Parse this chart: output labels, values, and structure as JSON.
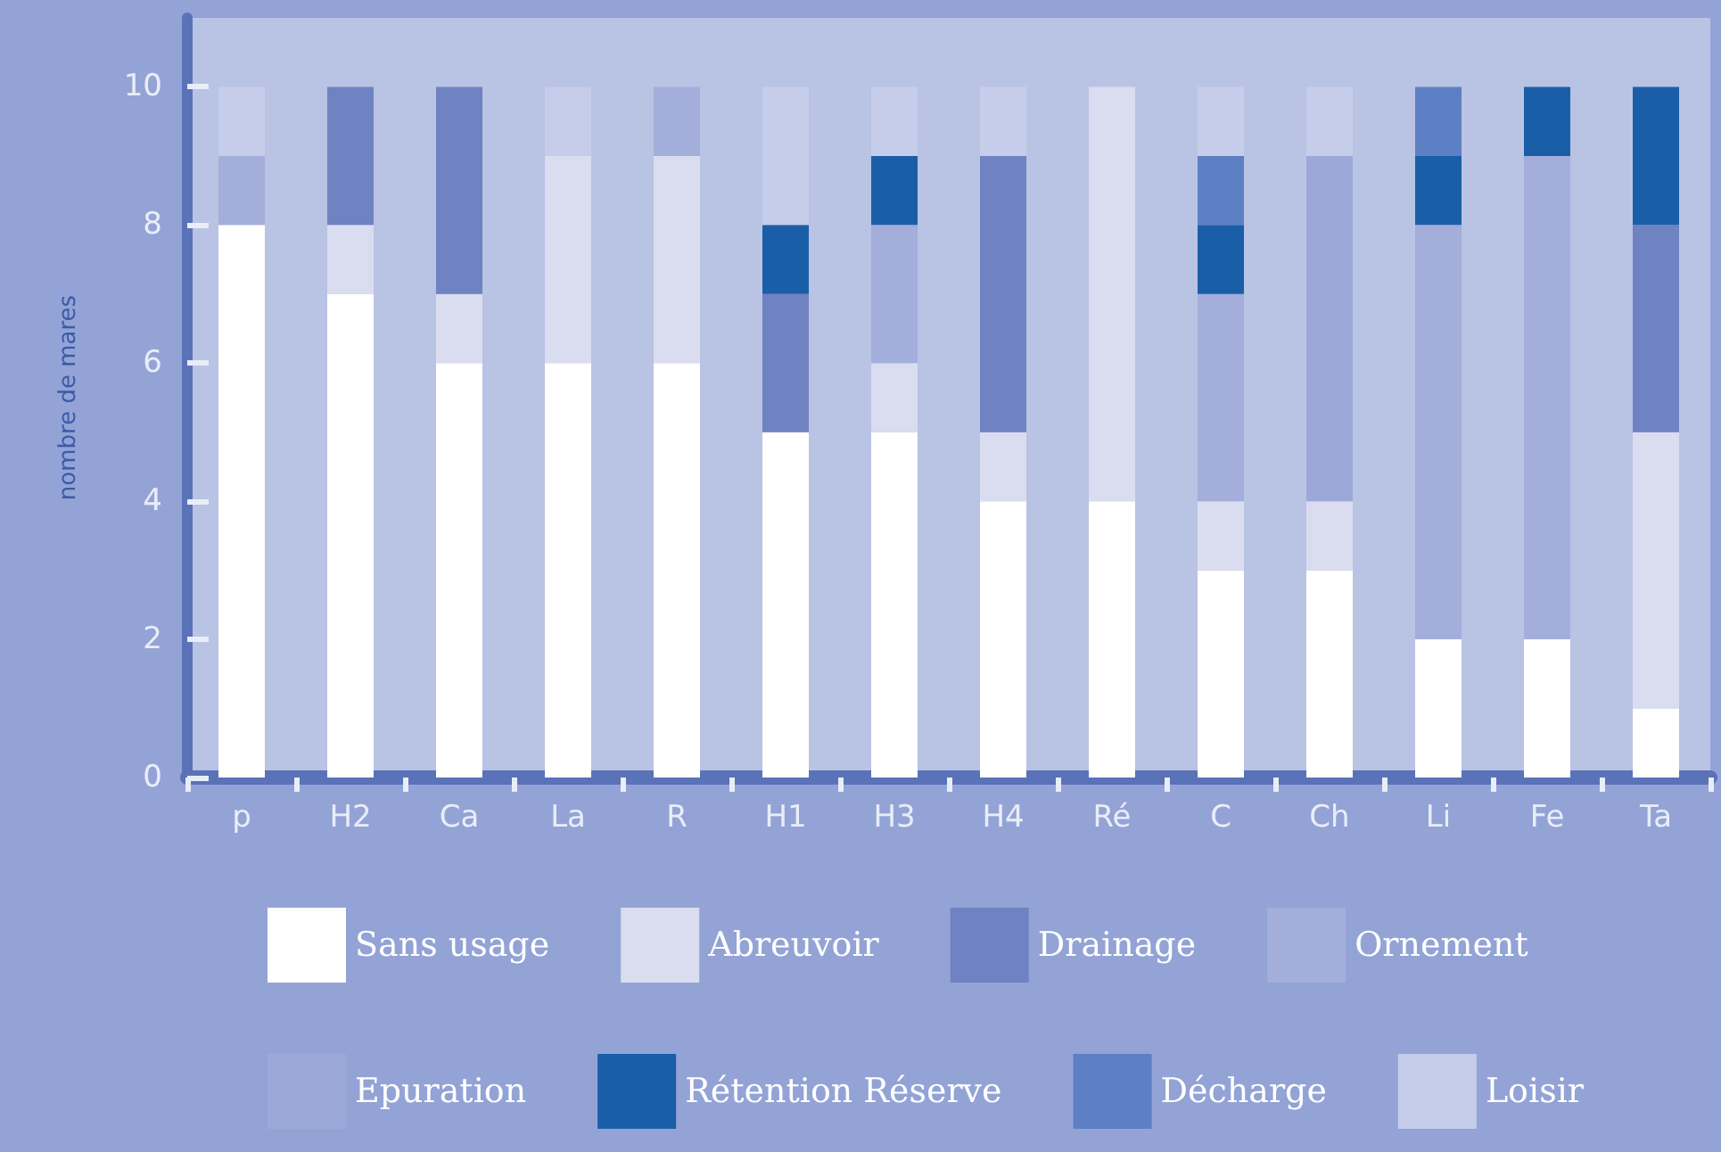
{
  "chart_data": {
    "type": "bar",
    "stacked": true,
    "ylabel": "nombre de mares",
    "categories": [
      "p",
      "H2",
      "Ca",
      "La",
      "R",
      "H1",
      "H3",
      "H4",
      "Ré",
      "C",
      "Ch",
      "Li",
      "Fe",
      "Ta"
    ],
    "series": [
      {
        "name": "Sans usage",
        "color": "#ffffff",
        "values": [
          8,
          7,
          6,
          6,
          6,
          5,
          5,
          4,
          4,
          3,
          3,
          2,
          2,
          1
        ]
      },
      {
        "name": "Abreuvoir",
        "color": "#d9ddef",
        "values": [
          0,
          1,
          1,
          3,
          3,
          0,
          1,
          1,
          6,
          1,
          1,
          0,
          0,
          4
        ]
      },
      {
        "name": "Drainage",
        "color": "#6f82c2",
        "values": [
          0,
          2,
          3,
          0,
          0,
          2,
          0,
          4,
          0,
          0,
          0,
          0,
          0,
          3
        ]
      },
      {
        "name": "Ornement",
        "color": "#a3aedb",
        "values": [
          1,
          0,
          0,
          0,
          1,
          0,
          2,
          0,
          0,
          3,
          0,
          6,
          7,
          0
        ]
      },
      {
        "name": "Epuration",
        "color": "#9ca9d8",
        "values": [
          0,
          0,
          0,
          0,
          0,
          0,
          0,
          0,
          0,
          0,
          5,
          0,
          0,
          0
        ]
      },
      {
        "name": "Rétention Réserve",
        "color": "#1a5ea8",
        "values": [
          0,
          0,
          0,
          0,
          0,
          1,
          1,
          0,
          0,
          1,
          0,
          1,
          1,
          2
        ]
      },
      {
        "name": "Décharge",
        "color": "#5d7fc3",
        "values": [
          0,
          0,
          0,
          0,
          0,
          0,
          0,
          0,
          0,
          1,
          0,
          1,
          0,
          0
        ]
      },
      {
        "name": "Loisir",
        "color": "#c6cdeb",
        "values": [
          1,
          0,
          0,
          1,
          0,
          2,
          1,
          1,
          0,
          1,
          1,
          0,
          0,
          0
        ]
      }
    ],
    "ylim": [
      0,
      11
    ],
    "yticks": [
      0,
      2,
      4,
      6,
      8,
      10
    ],
    "grid": false,
    "legend": "bottom"
  }
}
